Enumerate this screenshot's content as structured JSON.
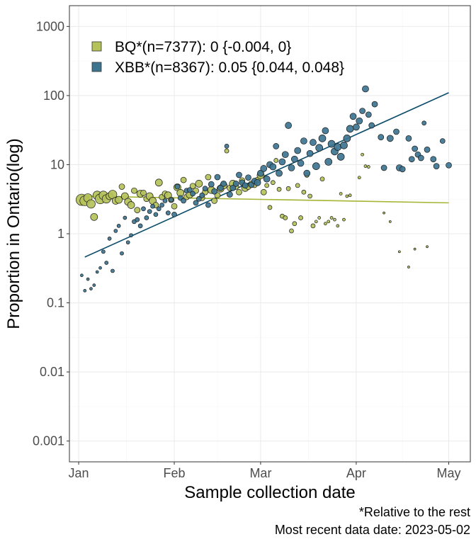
{
  "chart_data": {
    "type": "scatter",
    "ylabel": "Proportion in Ontario(log)",
    "xlabel": "Sample collection date",
    "y_scale": "log",
    "ylim": [
      0.0005,
      2000
    ],
    "xlim": [
      "2022-12-29",
      "2023-05-08"
    ],
    "grid": true,
    "legend_position": "top-left",
    "y_ticks": [
      {
        "value": 1000,
        "label": "1000"
      },
      {
        "value": 100,
        "label": "100"
      },
      {
        "value": 10,
        "label": "10"
      },
      {
        "value": 1,
        "label": "1"
      },
      {
        "value": 0.1,
        "label": "0.1"
      },
      {
        "value": 0.01,
        "label": "0.01"
      },
      {
        "value": 0.001,
        "label": "0.001"
      }
    ],
    "x_ticks": [
      {
        "value": "2023-01-01",
        "label": "Jan"
      },
      {
        "value": "2023-02-01",
        "label": "Feb"
      },
      {
        "value": "2023-03-01",
        "label": "Mar"
      },
      {
        "value": "2023-04-01",
        "label": "Apr"
      },
      {
        "value": "2023-05-01",
        "label": "May"
      }
    ],
    "caption": [
      "*Relative to the rest",
      "Most recent data date: 2023-05-02"
    ],
    "series": [
      {
        "name": "BQ*(n=7377): 0 {-0.004, 0}",
        "color": "#b5c25a",
        "line_color": "#a6b536",
        "trend": {
          "start": [
            "2023-01-03",
            3.5
          ],
          "end": [
            "2023-05-01",
            2.8
          ]
        },
        "points": [
          [
            "2023-01-02",
            3.1,
            8
          ],
          [
            "2023-01-03",
            3.0,
            7
          ],
          [
            "2023-01-04",
            3.3,
            6
          ],
          [
            "2023-01-05",
            2.7,
            6
          ],
          [
            "2023-01-06",
            1.75,
            5
          ],
          [
            "2023-01-07",
            3.6,
            6
          ],
          [
            "2023-01-08",
            3.2,
            7
          ],
          [
            "2023-01-09",
            3.6,
            6
          ],
          [
            "2023-01-10",
            3.2,
            6
          ],
          [
            "2023-01-11",
            3.5,
            5
          ],
          [
            "2023-01-12",
            3.7,
            6
          ],
          [
            "2023-01-13",
            3.0,
            5
          ],
          [
            "2023-01-14",
            3.1,
            5
          ],
          [
            "2023-01-15",
            4.8,
            4
          ],
          [
            "2023-01-16",
            3.5,
            5
          ],
          [
            "2023-01-17",
            2.9,
            5
          ],
          [
            "2023-01-18",
            2.6,
            5
          ],
          [
            "2023-01-19",
            4.2,
            4
          ],
          [
            "2023-01-20",
            2.2,
            4
          ],
          [
            "2023-01-21",
            3.8,
            5
          ],
          [
            "2023-01-22",
            3.9,
            4
          ],
          [
            "2023-01-23",
            3.2,
            4
          ],
          [
            "2023-01-24",
            3.5,
            5
          ],
          [
            "2023-01-25",
            3.0,
            5
          ],
          [
            "2023-01-26",
            2.6,
            4
          ],
          [
            "2023-01-27",
            5.5,
            5
          ],
          [
            "2023-01-28",
            3.4,
            4
          ],
          [
            "2023-01-29",
            3.8,
            4
          ],
          [
            "2023-01-30",
            3.6,
            5
          ],
          [
            "2023-01-31",
            3.1,
            4
          ],
          [
            "2023-02-01",
            2.5,
            4
          ],
          [
            "2023-02-02",
            4.7,
            5
          ],
          [
            "2023-02-03",
            3.9,
            5
          ],
          [
            "2023-02-04",
            6.0,
            4
          ],
          [
            "2023-02-05",
            3.4,
            4
          ],
          [
            "2023-02-06",
            3.7,
            5
          ],
          [
            "2023-02-07",
            4.9,
            4
          ],
          [
            "2023-02-08",
            4.2,
            4
          ],
          [
            "2023-02-09",
            5.3,
            5
          ],
          [
            "2023-02-10",
            3.3,
            4
          ],
          [
            "2023-02-11",
            4.0,
            4
          ],
          [
            "2023-02-12",
            6.6,
            4
          ],
          [
            "2023-02-13",
            4.3,
            5
          ],
          [
            "2023-02-14",
            3.0,
            4
          ],
          [
            "2023-02-15",
            3.6,
            4
          ],
          [
            "2023-02-16",
            4.5,
            5
          ],
          [
            "2023-02-17",
            5.0,
            5
          ],
          [
            "2023-02-18",
            15.8,
            3
          ],
          [
            "2023-02-19",
            4.6,
            4
          ],
          [
            "2023-02-20",
            5.3,
            5
          ],
          [
            "2023-02-21",
            4.8,
            4
          ],
          [
            "2023-02-22",
            4.0,
            4
          ],
          [
            "2023-02-23",
            5.9,
            4
          ],
          [
            "2023-02-24",
            4.6,
            5
          ],
          [
            "2023-02-25",
            4.8,
            4
          ],
          [
            "2023-02-26",
            5.3,
            4
          ],
          [
            "2023-02-27",
            5.1,
            4
          ],
          [
            "2023-02-28",
            6.0,
            4
          ],
          [
            "2023-03-01",
            7.0,
            5
          ],
          [
            "2023-03-02",
            4.0,
            4
          ],
          [
            "2023-03-03",
            5.0,
            3
          ],
          [
            "2023-03-04",
            2.4,
            3
          ],
          [
            "2023-03-05",
            5.5,
            3
          ],
          [
            "2023-03-06",
            11.5,
            3
          ],
          [
            "2023-03-07",
            4.4,
            3
          ],
          [
            "2023-03-08",
            1.8,
            3
          ],
          [
            "2023-03-09",
            1.7,
            3
          ],
          [
            "2023-03-10",
            4.5,
            3
          ],
          [
            "2023-03-11",
            1.1,
            3
          ],
          [
            "2023-03-12",
            1.4,
            3
          ],
          [
            "2023-03-13",
            5.0,
            3
          ],
          [
            "2023-03-14",
            1.7,
            3
          ],
          [
            "2023-03-15",
            4.0,
            3
          ],
          [
            "2023-03-16",
            7.0,
            3
          ],
          [
            "2023-03-17",
            3.5,
            3
          ],
          [
            "2023-03-18",
            1.3,
            3
          ],
          [
            "2023-03-19",
            1.5,
            2
          ],
          [
            "2023-03-20",
            1.7,
            2
          ],
          [
            "2023-03-21",
            6.2,
            3
          ],
          [
            "2023-03-22",
            1.4,
            2
          ],
          [
            "2023-03-23",
            1.5,
            2
          ],
          [
            "2023-03-24",
            1.7,
            2
          ],
          [
            "2023-03-25",
            1.6,
            2
          ],
          [
            "2023-03-26",
            1.3,
            2
          ],
          [
            "2023-03-27",
            3.8,
            2
          ],
          [
            "2023-03-28",
            1.6,
            2
          ],
          [
            "2023-03-29",
            3.5,
            2
          ],
          [
            "2023-03-30",
            3.6,
            2
          ],
          [
            "2023-04-02",
            6.5,
            2
          ],
          [
            "2023-04-03",
            14.0,
            2
          ],
          [
            "2023-04-04",
            9.5,
            2
          ],
          [
            "2023-04-05",
            9.3,
            2
          ],
          [
            "2023-04-10",
            2.0,
            1.5
          ],
          [
            "2023-04-12",
            1.5,
            1.5
          ],
          [
            "2023-04-15",
            0.55,
            1.5
          ],
          [
            "2023-04-18",
            0.33,
            1.5
          ],
          [
            "2023-04-20",
            0.6,
            1.5
          ],
          [
            "2023-04-24",
            0.65,
            1.5
          ]
        ]
      },
      {
        "name": "XBB*(n=8367): 0.05 {0.044, 0.048}",
        "color": "#3d7591",
        "line_color": "#0d4d6b",
        "trend": {
          "start": [
            "2023-01-03",
            0.46
          ],
          "end": [
            "2023-05-01",
            110
          ]
        },
        "points": [
          [
            "2023-01-02",
            0.25,
            2
          ],
          [
            "2023-01-03",
            0.15,
            2
          ],
          [
            "2023-01-04",
            0.22,
            2
          ],
          [
            "2023-01-05",
            0.16,
            2
          ],
          [
            "2023-01-06",
            0.18,
            2
          ],
          [
            "2023-01-07",
            0.28,
            2
          ],
          [
            "2023-01-08",
            0.32,
            2
          ],
          [
            "2023-01-09",
            0.55,
            2.5
          ],
          [
            "2023-01-10",
            0.38,
            2.5
          ],
          [
            "2023-01-11",
            0.85,
            2.5
          ],
          [
            "2023-01-12",
            0.29,
            2.5
          ],
          [
            "2023-01-13",
            1.1,
            2.5
          ],
          [
            "2023-01-14",
            1.3,
            2.5
          ],
          [
            "2023-01-15",
            0.52,
            2.5
          ],
          [
            "2023-01-16",
            1.7,
            2.5
          ],
          [
            "2023-01-17",
            0.75,
            2.5
          ],
          [
            "2023-01-18",
            0.95,
            2.5
          ],
          [
            "2023-01-19",
            1.5,
            3
          ],
          [
            "2023-01-20",
            1.6,
            3
          ],
          [
            "2023-01-21",
            1.3,
            3
          ],
          [
            "2023-01-22",
            2.3,
            3
          ],
          [
            "2023-01-23",
            1.7,
            3
          ],
          [
            "2023-01-24",
            2.1,
            3
          ],
          [
            "2023-01-25",
            2.5,
            3
          ],
          [
            "2023-01-26",
            1.9,
            3
          ],
          [
            "2023-01-27",
            2.3,
            3
          ],
          [
            "2023-01-28",
            2.6,
            3
          ],
          [
            "2023-01-29",
            3.0,
            3
          ],
          [
            "2023-01-30",
            2.0,
            3
          ],
          [
            "2023-01-31",
            3.1,
            3
          ],
          [
            "2023-02-01",
            1.9,
            3.5
          ],
          [
            "2023-02-02",
            4.8,
            3.5
          ],
          [
            "2023-02-03",
            3.3,
            3.5
          ],
          [
            "2023-02-04",
            3.0,
            3.5
          ],
          [
            "2023-02-05",
            4.2,
            3.5
          ],
          [
            "2023-02-06",
            4.3,
            3.5
          ],
          [
            "2023-02-07",
            3.8,
            3.5
          ],
          [
            "2023-02-08",
            2.8,
            3.5
          ],
          [
            "2023-02-09",
            3.2,
            3.5
          ],
          [
            "2023-02-10",
            3.6,
            3.5
          ],
          [
            "2023-02-11",
            4.5,
            3.5
          ],
          [
            "2023-02-12",
            2.6,
            3.5
          ],
          [
            "2023-02-13",
            5.2,
            4
          ],
          [
            "2023-02-14",
            4.1,
            4
          ],
          [
            "2023-02-15",
            6.6,
            4
          ],
          [
            "2023-02-16",
            4.6,
            4
          ],
          [
            "2023-02-17",
            5.3,
            4
          ],
          [
            "2023-02-18",
            18.5,
            3
          ],
          [
            "2023-02-19",
            3.7,
            4
          ],
          [
            "2023-02-20",
            4.6,
            4
          ],
          [
            "2023-02-21",
            5.3,
            4
          ],
          [
            "2023-02-22",
            7.1,
            4
          ],
          [
            "2023-02-23",
            5.5,
            4
          ],
          [
            "2023-02-24",
            5.0,
            4
          ],
          [
            "2023-02-25",
            6.5,
            4
          ],
          [
            "2023-02-26",
            5.1,
            4
          ],
          [
            "2023-02-27",
            5.8,
            4
          ],
          [
            "2023-02-28",
            5.5,
            4.5
          ],
          [
            "2023-03-01",
            7.5,
            4.5
          ],
          [
            "2023-03-02",
            8.8,
            4.5
          ],
          [
            "2023-03-03",
            6.2,
            4.5
          ],
          [
            "2023-03-04",
            10.0,
            4.5
          ],
          [
            "2023-03-05",
            9.3,
            4.5
          ],
          [
            "2023-03-06",
            18.5,
            4
          ],
          [
            "2023-03-07",
            7.5,
            4.5
          ],
          [
            "2023-03-08",
            11.0,
            4.5
          ],
          [
            "2023-03-09",
            14.0,
            4.5
          ],
          [
            "2023-03-10",
            37.0,
            4.5
          ],
          [
            "2023-03-11",
            9.0,
            4.5
          ],
          [
            "2023-03-12",
            12.0,
            4.5
          ],
          [
            "2023-03-13",
            16.0,
            4.5
          ],
          [
            "2023-03-14",
            10.5,
            4.5
          ],
          [
            "2023-03-15",
            22.0,
            4.5
          ],
          [
            "2023-03-16",
            7.5,
            4.5
          ],
          [
            "2023-03-17",
            14.5,
            4.5
          ],
          [
            "2023-03-18",
            21.0,
            4.5
          ],
          [
            "2023-03-19",
            9.5,
            5
          ],
          [
            "2023-03-20",
            17.5,
            5
          ],
          [
            "2023-03-21",
            24.0,
            5
          ],
          [
            "2023-03-22",
            31.0,
            4.5
          ],
          [
            "2023-03-23",
            11.0,
            5
          ],
          [
            "2023-03-24",
            20.0,
            5
          ],
          [
            "2023-03-25",
            15.5,
            5
          ],
          [
            "2023-03-26",
            18.0,
            5
          ],
          [
            "2023-03-27",
            13.0,
            5
          ],
          [
            "2023-03-28",
            19.0,
            5
          ],
          [
            "2023-03-29",
            24.0,
            5
          ],
          [
            "2023-03-30",
            33.0,
            5
          ],
          [
            "2023-03-31",
            50.0,
            4.5
          ],
          [
            "2023-04-01",
            35.0,
            4.5
          ],
          [
            "2023-04-02",
            43.0,
            4.5
          ],
          [
            "2023-04-03",
            60.0,
            4
          ],
          [
            "2023-04-04",
            125.0,
            4.5
          ],
          [
            "2023-04-05",
            53.0,
            4
          ],
          [
            "2023-04-06",
            37.0,
            4
          ],
          [
            "2023-04-07",
            75.0,
            4
          ],
          [
            "2023-04-09",
            25.0,
            4
          ],
          [
            "2023-04-10",
            9.0,
            4
          ],
          [
            "2023-04-12",
            24.0,
            4.5
          ],
          [
            "2023-04-14",
            30.0,
            4
          ],
          [
            "2023-04-15",
            9.0,
            4.5
          ],
          [
            "2023-04-16",
            8.6,
            4
          ],
          [
            "2023-04-18",
            24.0,
            4
          ],
          [
            "2023-04-19",
            12.0,
            4
          ],
          [
            "2023-04-20",
            17.0,
            4
          ],
          [
            "2023-04-21",
            14.0,
            4
          ],
          [
            "2023-04-22",
            12.5,
            4
          ],
          [
            "2023-04-23",
            40.0,
            3
          ],
          [
            "2023-04-24",
            16.5,
            4
          ],
          [
            "2023-04-26",
            12.0,
            4
          ],
          [
            "2023-04-27",
            9.5,
            4
          ],
          [
            "2023-04-29",
            22.0,
            3.5
          ],
          [
            "2023-05-01",
            9.8,
            4
          ]
        ]
      }
    ]
  }
}
